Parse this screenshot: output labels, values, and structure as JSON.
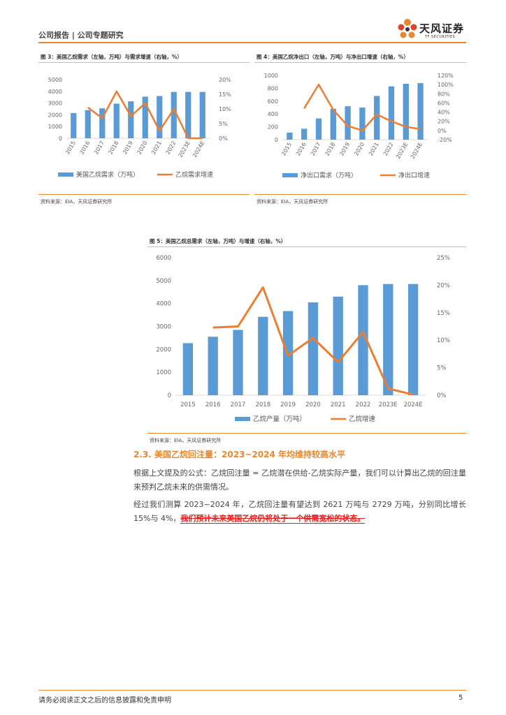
{
  "header": {
    "title": "公司报告 | 公司专题研究",
    "logo_text": "天风证券",
    "logo_sub": "TF SECURITIES"
  },
  "figures": [
    {
      "caption": "图 3：美国乙烷需求（左轴，万吨）与需求增速（右轴，%）",
      "source": "资料来源：EIA，天风证券研究所"
    },
    {
      "caption": "图 4：美国乙烷净出口（左轴，万吨）与净出口增速（右轴，%）",
      "source": "资料来源：EIA，天风证券研究所"
    },
    {
      "caption": "图 5：美国乙烷总需求（左轴，万吨）与增速（右轴，%）",
      "source": "资料来源：EIA，天风证券研究所"
    }
  ],
  "chart_data": [
    {
      "type": "bar",
      "categories": [
        "2015",
        "2016",
        "2017",
        "2018",
        "2019",
        "2020",
        "2021",
        "2022",
        "2023E",
        "2024E"
      ],
      "series": [
        {
          "name": "美国乙烷需求（万吨）",
          "type": "bar",
          "axis": "left",
          "values": [
            2150,
            2400,
            2550,
            2950,
            3150,
            3550,
            3600,
            3950,
            3950,
            3950
          ]
        },
        {
          "name": "乙烷需求增速",
          "type": "line",
          "axis": "right",
          "values": [
            null,
            10.5,
            6.8,
            16,
            7.5,
            12,
            2.5,
            10,
            0,
            0
          ]
        }
      ],
      "left_ticks": [
        "0",
        "1000",
        "2000",
        "3000",
        "4000",
        "5000"
      ],
      "right_ticks": [
        "0%",
        "5%",
        "10%",
        "15%",
        "20%"
      ],
      "ylim_left": [
        0,
        5000
      ],
      "ylim_right": [
        0,
        20
      ],
      "colors": {
        "bar": "#5b9bd5",
        "line": "#ed7d31"
      }
    },
    {
      "type": "bar",
      "categories": [
        "2015",
        "2016",
        "2017",
        "2018",
        "2019",
        "2020",
        "2021",
        "2022",
        "2023E",
        "2024E"
      ],
      "series": [
        {
          "name": "净出口需求（万吨）",
          "type": "bar",
          "axis": "left",
          "values": [
            110,
            170,
            330,
            480,
            520,
            500,
            680,
            830,
            870,
            880
          ]
        },
        {
          "name": "净出口增速",
          "type": "line",
          "axis": "right",
          "values": [
            null,
            48,
            100,
            45,
            10,
            0,
            35,
            20,
            8,
            3
          ]
        }
      ],
      "left_ticks": [
        "0",
        "200",
        "400",
        "600",
        "800",
        "1000"
      ],
      "right_ticks": [
        "-20%",
        "0%",
        "20%",
        "40%",
        "60%",
        "80%",
        "100%",
        "120%"
      ],
      "ylim_left": [
        0,
        1000
      ],
      "ylim_right": [
        -20,
        120
      ],
      "colors": {
        "bar": "#5b9bd5",
        "line": "#ed7d31"
      }
    },
    {
      "type": "bar",
      "categories": [
        "2015",
        "2016",
        "2017",
        "2018",
        "2019",
        "2020",
        "2021",
        "2022",
        "2023E",
        "2024E"
      ],
      "series": [
        {
          "name": "乙烷产量（万吨）",
          "type": "bar",
          "axis": "left",
          "values": [
            2270,
            2550,
            2850,
            3420,
            3670,
            4050,
            4300,
            4800,
            4850,
            4850
          ]
        },
        {
          "name": "乙烷增速",
          "type": "line",
          "axis": "right",
          "values": [
            null,
            12.3,
            12.5,
            19.6,
            7.2,
            10.4,
            6,
            11.5,
            1.2,
            0.1
          ]
        }
      ],
      "left_ticks": [
        "0",
        "1000",
        "2000",
        "3000",
        "4000",
        "5000",
        "6000"
      ],
      "right_ticks": [
        "0%",
        "5%",
        "10%",
        "15%",
        "20%",
        "25%"
      ],
      "ylim_left": [
        0,
        6000
      ],
      "ylim_right": [
        0,
        25
      ],
      "colors": {
        "bar": "#5b9bd5",
        "line": "#ed7d31"
      }
    }
  ],
  "section": {
    "title": "2.3. 美国乙烷回注量：2023~2024 年均维持较高水平",
    "para1": "根据上文提及的公式：乙烷回注量 = 乙烷潜在供给-乙烷实际产量，我们可以计算出乙烷的回注量来预判乙烷未来的供需情况。",
    "para2_plain": "经过我们测算 2023~2024 年，乙烷回注量有望达到 2621 万吨与 2729 万吨，分别同比增长 15%与 4%，",
    "para2_highlight": "我们预计未来美国乙烷仍将处于一个供需宽松的状态。"
  },
  "footer": {
    "disclaimer": "请务必阅读正文之后的信息披露和免责申明",
    "page": "5"
  }
}
